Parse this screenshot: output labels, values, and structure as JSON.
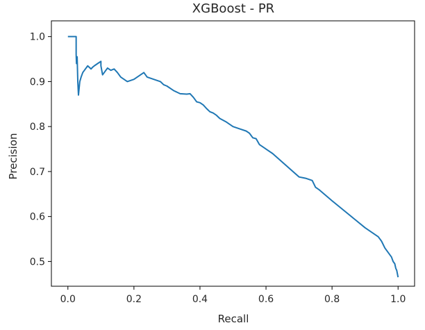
{
  "chart_data": {
    "type": "line",
    "title": "XGBoost - PR",
    "xlabel": "Recall",
    "ylabel": "Precision",
    "xlim": [
      -0.05,
      1.05
    ],
    "ylim": [
      0.445,
      1.035
    ],
    "xticks": [
      "0.0",
      "0.2",
      "0.4",
      "0.6",
      "0.8",
      "1.0"
    ],
    "yticks": [
      "0.5",
      "0.6",
      "0.7",
      "0.8",
      "0.9",
      "1.0"
    ],
    "grid": false,
    "legend": "none",
    "line_color": "#1f77b4",
    "series": [
      {
        "x": [
          0.0,
          0.025,
          0.025,
          0.026,
          0.028,
          0.03,
          0.032,
          0.034,
          0.036,
          0.04,
          0.045,
          0.05,
          0.06,
          0.07,
          0.075,
          0.08,
          0.09,
          0.1,
          0.1,
          0.105,
          0.11,
          0.115,
          0.12,
          0.13,
          0.14,
          0.15,
          0.16,
          0.17,
          0.18,
          0.2,
          0.23,
          0.24,
          0.26,
          0.28,
          0.29,
          0.3,
          0.32,
          0.34,
          0.36,
          0.37,
          0.38,
          0.39,
          0.4,
          0.41,
          0.42,
          0.43,
          0.44,
          0.45,
          0.46,
          0.48,
          0.5,
          0.52,
          0.54,
          0.55,
          0.56,
          0.57,
          0.58,
          0.6,
          0.62,
          0.7,
          0.72,
          0.74,
          0.75,
          0.76,
          0.8,
          0.85,
          0.9,
          0.93,
          0.94,
          0.95,
          0.96,
          0.97,
          0.98,
          0.985,
          0.99,
          0.993,
          0.996,
          1.0
        ],
        "y": [
          1.0,
          1.0,
          0.96,
          0.94,
          0.955,
          0.9,
          0.87,
          0.885,
          0.9,
          0.91,
          0.92,
          0.925,
          0.935,
          0.928,
          0.932,
          0.935,
          0.94,
          0.945,
          0.935,
          0.915,
          0.92,
          0.925,
          0.93,
          0.925,
          0.928,
          0.92,
          0.91,
          0.905,
          0.9,
          0.905,
          0.92,
          0.91,
          0.905,
          0.9,
          0.893,
          0.89,
          0.88,
          0.873,
          0.872,
          0.873,
          0.865,
          0.855,
          0.853,
          0.848,
          0.84,
          0.833,
          0.83,
          0.825,
          0.818,
          0.81,
          0.8,
          0.795,
          0.79,
          0.785,
          0.775,
          0.773,
          0.76,
          0.75,
          0.74,
          0.688,
          0.685,
          0.68,
          0.665,
          0.66,
          0.635,
          0.605,
          0.575,
          0.56,
          0.555,
          0.545,
          0.53,
          0.52,
          0.51,
          0.5,
          0.495,
          0.485,
          0.48,
          0.465
        ]
      }
    ]
  }
}
